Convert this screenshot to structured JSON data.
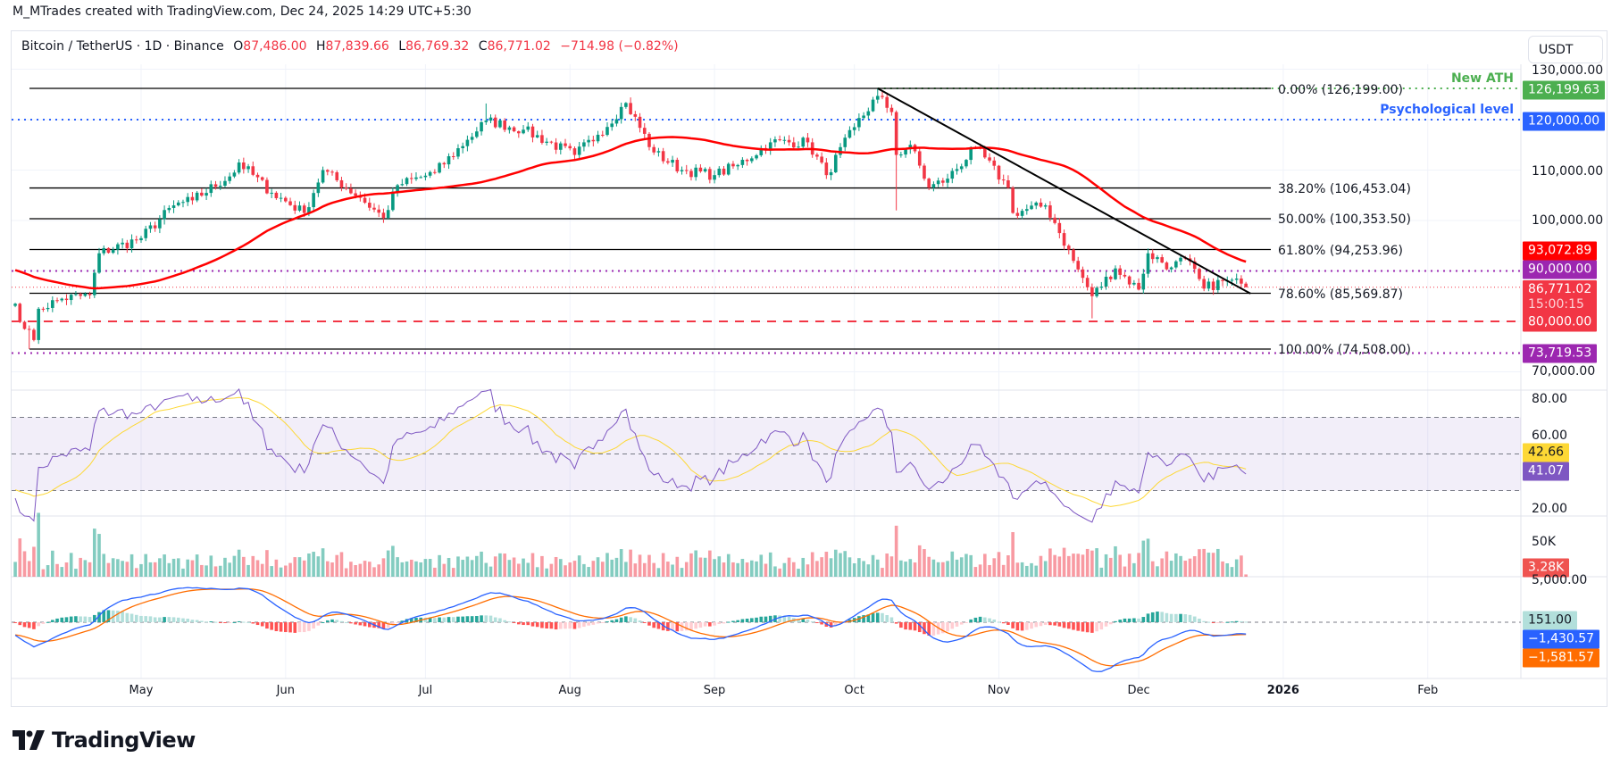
{
  "header": {
    "credit": "M_MTrades created with TradingView.com, Dec 24, 2025 14:29 UTC+5:30"
  },
  "legend": {
    "symbol": "Bitcoin / TetherUS · 1D · Binance",
    "open_label": "O",
    "open": "87,486.00",
    "high_label": "H",
    "high": "87,839.66",
    "low_label": "L",
    "low": "86,769.32",
    "close_label": "C",
    "close": "86,771.02",
    "change": "−714.98 (−0.82%)"
  },
  "currency_button": "USDT",
  "price_axis": {
    "ticks": [
      "130,000.00",
      "110,000.00",
      "100,000.00",
      "70,000.00"
    ]
  },
  "badges": {
    "ath": {
      "text": "126,199.63",
      "color": "#4caf50"
    },
    "psych": {
      "text": "120,000.00",
      "color": "#2962ff"
    },
    "ma": {
      "text": "93,072.89",
      "color": "#ff0000"
    },
    "ninety": {
      "text": "90,000.00",
      "color": "#9c27b0"
    },
    "last": {
      "text": "86,771.02",
      "countdown": "15:00:15",
      "color": "#f23645"
    },
    "eighty": {
      "text": "80,000.00",
      "color": "#f23645"
    },
    "low": {
      "text": "73,719.53",
      "color": "#9c27b0"
    }
  },
  "annotations": {
    "new_ath": "New ATH",
    "psychological": "Psychological level"
  },
  "fibonacci": [
    {
      "label": "0.00% (126,199.00)",
      "price": 126199.0
    },
    {
      "label": "38.20% (106,453.04)",
      "price": 106453.04
    },
    {
      "label": "50.00% (100,353.50)",
      "price": 100353.5
    },
    {
      "label": "61.80% (94,253.96)",
      "price": 94253.96
    },
    {
      "label": "78.60% (85,569.87)",
      "price": 85569.87
    },
    {
      "label": "100.00% (74,508.00)",
      "price": 74508.0
    }
  ],
  "x_axis": [
    {
      "label": "May",
      "date": "2025-05-01"
    },
    {
      "label": "Jun",
      "date": "2025-06-01"
    },
    {
      "label": "Jul",
      "date": "2025-07-01"
    },
    {
      "label": "Aug",
      "date": "2025-08-01"
    },
    {
      "label": "Sep",
      "date": "2025-09-01"
    },
    {
      "label": "Oct",
      "date": "2025-10-01"
    },
    {
      "label": "Nov",
      "date": "2025-11-01"
    },
    {
      "label": "Dec",
      "date": "2025-12-01"
    },
    {
      "label": "2026",
      "date": "2026-01-01",
      "bold": true
    },
    {
      "label": "Feb",
      "date": "2026-02-01"
    }
  ],
  "rsi": {
    "ticks": [
      "80.00",
      "60.00",
      "20.00"
    ],
    "ma_value": "42.66",
    "rsi_value": "41.07",
    "ma_color": "#fdd835",
    "rsi_color": "#7e57c2"
  },
  "volume": {
    "ticks": [
      "50K"
    ],
    "value": "3.28K",
    "color": "#ef5350"
  },
  "macd": {
    "ticks": [
      "5,000.00"
    ],
    "hist_value": "151.00",
    "macd_value": "−1,430.57",
    "signal_value": "−1,581.57",
    "hist_color": "#b2dfdb",
    "macd_color": "#2962ff",
    "signal_color": "#ff6d00"
  },
  "brand": "TradingView",
  "chart_data": {
    "type": "candlestick",
    "symbol": "BTCUSDT",
    "interval": "1D",
    "ylim": [
      70000,
      130000
    ],
    "up_color": "#089981",
    "down_color": "#f23645",
    "moving_average_color": "#ff0000",
    "approx_closes": [
      [
        "2025-04-04",
        83500
      ],
      [
        "2025-04-06",
        78500
      ],
      [
        "2025-04-08",
        76300
      ],
      [
        "2025-04-09",
        82500
      ],
      [
        "2025-04-14",
        84500
      ],
      [
        "2025-04-20",
        85200
      ],
      [
        "2025-04-22",
        93500
      ],
      [
        "2025-05-01",
        96500
      ],
      [
        "2025-05-08",
        103000
      ],
      [
        "2025-05-12",
        104000
      ],
      [
        "2025-05-21",
        109500
      ],
      [
        "2025-05-22",
        111500
      ],
      [
        "2025-05-29",
        105500
      ],
      [
        "2025-06-05",
        101500
      ],
      [
        "2025-06-09",
        110000
      ],
      [
        "2025-06-17",
        104500
      ],
      [
        "2025-06-22",
        100500
      ],
      [
        "2025-06-25",
        107000
      ],
      [
        "2025-07-03",
        109500
      ],
      [
        "2025-07-10",
        116000
      ],
      [
        "2025-07-14",
        119800
      ],
      [
        "2025-07-22",
        118000
      ],
      [
        "2025-08-02",
        113000
      ],
      [
        "2025-08-07",
        117000
      ],
      [
        "2025-08-13",
        123300
      ],
      [
        "2025-08-19",
        113500
      ],
      [
        "2025-08-25",
        110000
      ],
      [
        "2025-09-01",
        109000
      ],
      [
        "2025-09-06",
        111000
      ],
      [
        "2025-09-13",
        115500
      ],
      [
        "2025-09-21",
        115500
      ],
      [
        "2025-09-25",
        109000
      ],
      [
        "2025-10-01",
        118500
      ],
      [
        "2025-10-06",
        124700
      ],
      [
        "2025-10-09",
        121500
      ],
      [
        "2025-10-10",
        113000
      ],
      [
        "2025-10-13",
        115000
      ],
      [
        "2025-10-17",
        106500
      ],
      [
        "2025-10-21",
        108300
      ],
      [
        "2025-10-27",
        114500
      ],
      [
        "2025-11-03",
        106500
      ],
      [
        "2025-11-04",
        101500
      ],
      [
        "2025-11-11",
        103000
      ],
      [
        "2025-11-13",
        99500
      ],
      [
        "2025-11-17",
        92000
      ],
      [
        "2025-11-21",
        85000
      ],
      [
        "2025-11-26",
        90500
      ],
      [
        "2025-12-01",
        86300
      ],
      [
        "2025-12-03",
        93500
      ],
      [
        "2025-12-08",
        90700
      ],
      [
        "2025-12-11",
        92500
      ],
      [
        "2025-12-15",
        86500
      ],
      [
        "2025-12-19",
        88000
      ],
      [
        "2025-12-23",
        87486
      ],
      [
        "2025-12-24",
        86771.02
      ]
    ],
    "levels": [
      {
        "name": "New ATH",
        "price": 126199.63,
        "style": "dotted",
        "color": "#4caf50"
      },
      {
        "name": "Psychological level",
        "price": 120000,
        "style": "dotted",
        "color": "#2962ff"
      },
      {
        "price": 90000,
        "style": "dotted",
        "color": "#9c27b0"
      },
      {
        "price": 80000,
        "style": "dashed",
        "color": "#f23645"
      },
      {
        "price": 73719.53,
        "style": "dotted",
        "color": "#9c27b0"
      }
    ],
    "trendline": {
      "from": [
        "2025-10-06",
        126199
      ],
      "to": [
        "2025-12-25",
        85500
      ]
    }
  }
}
